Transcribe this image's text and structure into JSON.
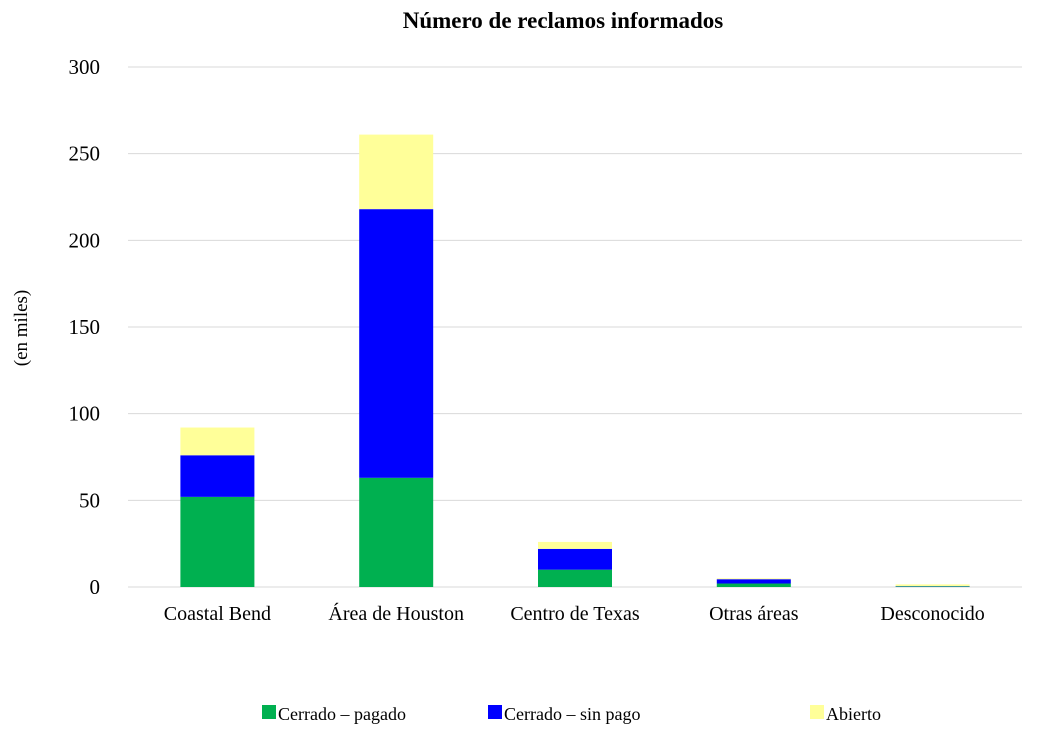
{
  "chart_data": {
    "type": "bar",
    "stacked": true,
    "title": "Número de reclamos informados",
    "ylabel": "(en miles)",
    "xlabel": "",
    "ylim": [
      0,
      300
    ],
    "yticks": [
      0,
      50,
      100,
      150,
      200,
      250,
      300
    ],
    "grid": true,
    "legend_position": "bottom",
    "categories": [
      "Coastal Bend",
      "Área de Houston",
      "Centro de Texas",
      "Otras áreas",
      "Desconocido"
    ],
    "series": [
      {
        "name": "Cerrado – pagado",
        "color": "#00b050",
        "values": [
          52,
          63,
          10,
          2,
          0.3
        ]
      },
      {
        "name": "Cerrado – sin pago",
        "color": "#0000ff",
        "values": [
          24,
          155,
          12,
          2.5,
          0.2
        ]
      },
      {
        "name": "Abierto",
        "color": "#ffff99",
        "values": [
          16,
          43,
          4,
          0.5,
          1
        ]
      }
    ],
    "colors": {
      "grid": "#d9d9d9",
      "background": "#ffffff"
    }
  }
}
